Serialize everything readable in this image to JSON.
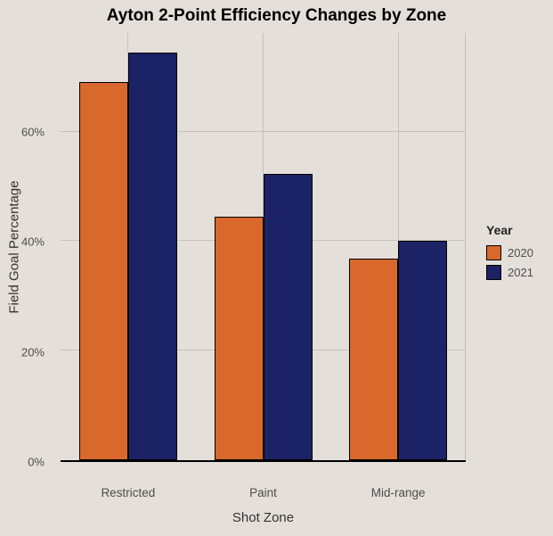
{
  "title": "Ayton 2-Point Efficiency Changes by Zone",
  "chart_data": {
    "type": "bar",
    "title": "Ayton 2-Point Efficiency Changes by Zone",
    "categories": [
      "Restricted",
      "Paint",
      "Mid-range"
    ],
    "series": [
      {
        "name": "2020",
        "color": "#D9682D",
        "values": [
          69.0,
          44.5,
          36.8
        ]
      },
      {
        "name": "2021",
        "color": "#1B2265",
        "values": [
          74.5,
          52.3,
          40.0
        ]
      }
    ],
    "xlabel": "Shot Zone",
    "ylabel": "Field Goal Percentage",
    "y_ticks": [
      "0%",
      "20%",
      "40%",
      "60%"
    ],
    "y_tick_values": [
      0,
      20,
      40,
      60
    ],
    "ylim": [
      0,
      78
    ],
    "legend_title": "Year",
    "legend_position": "right",
    "grid": true
  },
  "colors": {
    "background": "#E5DFDA",
    "gridline": "#C7BFBA",
    "axis_line": "#000000",
    "bar_border": "#000000",
    "tick_text": "#4D4D4D",
    "title_text": "#000000"
  }
}
